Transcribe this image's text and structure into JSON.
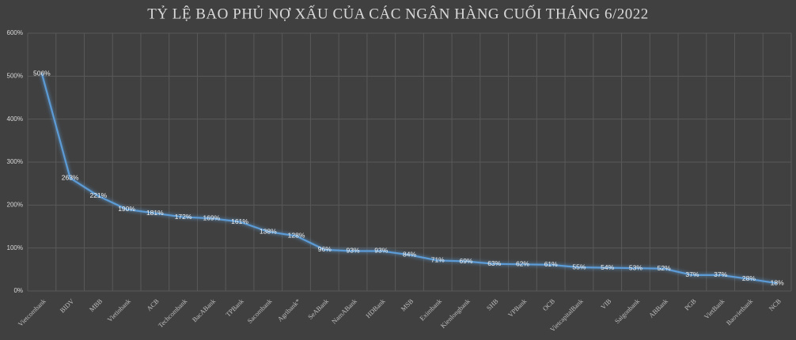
{
  "chart_data": {
    "type": "line",
    "title": "TỶ LỆ BAO PHỦ NỢ XẤU CỦA CÁC NGÂN HÀNG CUỐI THÁNG 6/2022",
    "categories": [
      "Vietcombank",
      "BIDV",
      "MBB",
      "Vietinbank",
      "ACB",
      "Techcombank",
      "BacABank",
      "TPBank",
      "Sacombank",
      "Agribank*",
      "SeABank",
      "NamABank",
      "HDBank",
      "MSB",
      "Eximbank",
      "Kienlongbank",
      "SHB",
      "VPBank",
      "OCB",
      "VietcapitalBank",
      "VIB",
      "Saigonbank",
      "ABBank",
      "PGB",
      "VietBank",
      "Baovietbank",
      "NCB"
    ],
    "series": [
      {
        "color": "#5b9bd5",
        "values": [
          506,
          263,
          221,
          190,
          181,
          172,
          169,
          161,
          138,
          128,
          96,
          93,
          93,
          84,
          71,
          69,
          63,
          62,
          61,
          55,
          54,
          53,
          52,
          37,
          37,
          28,
          18
        ],
        "value_labels": [
          "506%",
          "263%",
          "221%",
          "190%",
          "181%",
          "172%",
          "169%",
          "161%",
          "138%",
          "128%",
          "96%",
          "93%",
          "93%",
          "84%",
          "71%",
          "69%",
          "63%",
          "62%",
          "61%",
          "55%",
          "54%",
          "53%",
          "52%",
          "37%",
          "37%",
          "28%",
          "18%"
        ]
      }
    ],
    "ylim": [
      0,
      600
    ],
    "yticks": [
      {
        "value": 0,
        "label": "0%"
      },
      {
        "value": 100,
        "label": "100%"
      },
      {
        "value": 200,
        "label": "200%"
      },
      {
        "value": 300,
        "label": "300%"
      },
      {
        "value": 400,
        "label": "400%"
      },
      {
        "value": 500,
        "label": "500%"
      },
      {
        "value": 600,
        "label": "600%"
      }
    ],
    "grid": true
  }
}
